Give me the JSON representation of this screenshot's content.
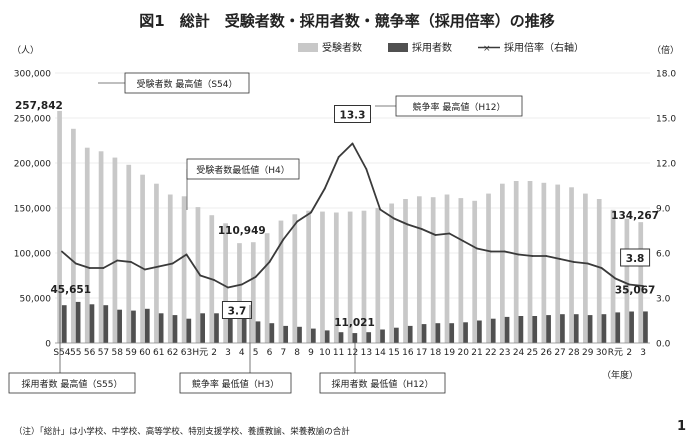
{
  "chart_data": {
    "type": "bar",
    "title": "図1　総計　受験者数・採用者数・競争率（採用倍率）の推移",
    "left_unit": "（人）",
    "right_unit": "（倍）",
    "x_unit": "（年度）",
    "ylim": [
      0,
      300000
    ],
    "y2lim": [
      0,
      18
    ],
    "y_ticks": [
      "0",
      "50,000",
      "100,000",
      "150,000",
      "200,000",
      "250,000",
      "300,000"
    ],
    "y2_ticks": [
      "0.0",
      "3.0",
      "6.0",
      "9.0",
      "12.0",
      "15.0",
      "18.0"
    ],
    "categories": [
      "S54",
      "55",
      "56",
      "57",
      "58",
      "59",
      "60",
      "61",
      "62",
      "63",
      "H元",
      "2",
      "3",
      "4",
      "5",
      "6",
      "7",
      "8",
      "9",
      "10",
      "11",
      "12",
      "13",
      "14",
      "15",
      "16",
      "17",
      "18",
      "19",
      "20",
      "21",
      "22",
      "23",
      "24",
      "25",
      "26",
      "27",
      "28",
      "29",
      "30",
      "R元",
      "2",
      "3"
    ],
    "series": [
      {
        "name": "受験者数",
        "axis": "left",
        "values": [
          257842,
          238000,
          217000,
          213000,
          206000,
          198000,
          187000,
          177000,
          165000,
          163000,
          151000,
          142000,
          133000,
          110949,
          112000,
          122000,
          136000,
          143000,
          147000,
          146000,
          145000,
          146000,
          147000,
          150000,
          155000,
          160000,
          163000,
          162000,
          165000,
          161000,
          158000,
          166000,
          177000,
          180000,
          180000,
          178000,
          176000,
          173000,
          166000,
          160000,
          148000,
          138000,
          134267
        ]
      },
      {
        "name": "採用者数",
        "axis": "left",
        "values": [
          42000,
          45651,
          43000,
          42000,
          37000,
          36000,
          38000,
          33000,
          31000,
          27000,
          33000,
          33000,
          33000,
          30000,
          24000,
          22000,
          19000,
          18000,
          16000,
          14000,
          12000,
          11021,
          12000,
          15000,
          17000,
          19000,
          21000,
          22000,
          22000,
          23000,
          25000,
          27000,
          29000,
          30000,
          30000,
          31000,
          32000,
          32000,
          31000,
          32000,
          34000,
          35000,
          35067
        ]
      },
      {
        "name": "採用倍率（右軸）",
        "axis": "right",
        "values": [
          6.1,
          5.3,
          5.0,
          5.0,
          5.5,
          5.4,
          4.9,
          5.1,
          5.3,
          5.9,
          4.5,
          4.2,
          3.7,
          3.9,
          4.4,
          5.4,
          6.9,
          8.1,
          8.7,
          10.3,
          12.4,
          13.3,
          11.6,
          8.9,
          8.3,
          7.9,
          7.6,
          7.2,
          7.3,
          6.8,
          6.3,
          6.1,
          6.1,
          5.9,
          5.8,
          5.8,
          5.6,
          5.4,
          5.3,
          5.0,
          4.3,
          3.9,
          3.8
        ]
      }
    ],
    "data_labels": [
      {
        "series": 0,
        "index": 0,
        "text": "257,842"
      },
      {
        "series": 0,
        "index": 13,
        "text": "110,949"
      },
      {
        "series": 0,
        "index": 42,
        "text": "134,267"
      },
      {
        "series": 1,
        "index": 1,
        "text": "45,651"
      },
      {
        "series": 1,
        "index": 21,
        "text": "11,021"
      },
      {
        "series": 1,
        "index": 42,
        "text": "35,067"
      },
      {
        "series": 2,
        "index": 12,
        "text": "3.7",
        "boxed": true
      },
      {
        "series": 2,
        "index": 21,
        "text": "13.3",
        "boxed": true
      },
      {
        "series": 2,
        "index": 42,
        "text": "3.8",
        "boxed": true
      }
    ],
    "annotations": [
      {
        "text": "受験者数 最高値（S54）",
        "series": 0,
        "index": 0
      },
      {
        "text": "受験者数最低値（H4）",
        "series": 0,
        "index": 13
      },
      {
        "text": "競争率 最高値（H12）",
        "series": 2,
        "index": 21
      },
      {
        "text": "競争率 最低値（H3）",
        "series": 2,
        "index": 12
      },
      {
        "text": "採用者数 最高値（S55）",
        "series": 1,
        "index": 1
      },
      {
        "text": "採用者数 最低値（H12）",
        "series": 1,
        "index": 21
      }
    ],
    "colors": {
      "applicants": "#c8c8c8",
      "hired": "#505050",
      "ratio": "#3a3a3a"
    },
    "legend_position": "top-right"
  },
  "footnote": "（注）「総計」は小学校、中学校、高等学校、特別支援学校、養護教諭、栄養教諭の合計",
  "page_number": "1"
}
